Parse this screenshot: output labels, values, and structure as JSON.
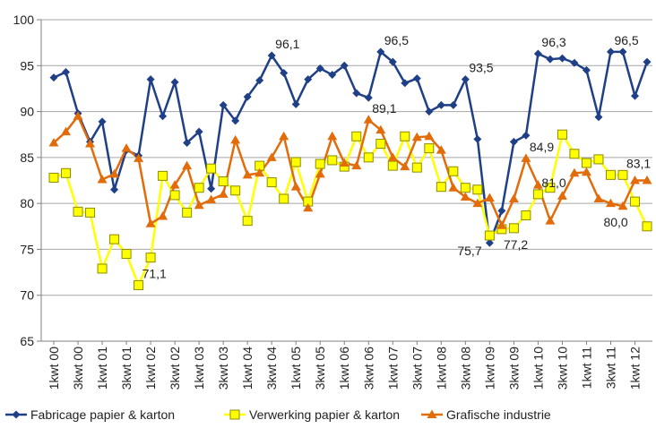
{
  "chart_data": {
    "type": "line",
    "categories": [
      "1kwt 00",
      null,
      "3kwt 00",
      null,
      "1kwt 01",
      null,
      "3kwt 01",
      null,
      "1kwt 02",
      null,
      "3kwt 02",
      null,
      "1kwt 03",
      null,
      "3kwt 03",
      null,
      "1kwt 04",
      null,
      "3kwt 04",
      null,
      "1kwt 05",
      null,
      "3kwt 05",
      null,
      "1kwt 06",
      null,
      "3kwt 06",
      null,
      "1kwt 07",
      null,
      "3kwt 07",
      null,
      "1kwt 08",
      null,
      "3kwt 08",
      null,
      "1kwt 09",
      null,
      "3kwt 09",
      null,
      "1kwt 10",
      null,
      "3kwt 10",
      null,
      "1kwt 11",
      null,
      "3kwt 11",
      null,
      "1kwt 12",
      null
    ],
    "ylim": [
      65,
      100
    ],
    "yticks": [
      65,
      70,
      75,
      80,
      85,
      90,
      95,
      100
    ],
    "grid": true,
    "legend": "bottom",
    "series": [
      {
        "name": "Fabricage papier & karton",
        "color": "#1f3f87",
        "marker": "diamond",
        "values": [
          93.7,
          94.3,
          89.8,
          86.7,
          88.9,
          81.5,
          85.8,
          85.2,
          93.5,
          89.5,
          93.2,
          86.6,
          87.8,
          81.6,
          90.7,
          89.0,
          91.6,
          93.4,
          96.1,
          94.2,
          90.8,
          93.5,
          94.7,
          94.0,
          95.0,
          92.0,
          91.5,
          96.5,
          95.4,
          93.1,
          93.6,
          90.0,
          90.7,
          90.7,
          93.5,
          87.0,
          75.7,
          79.2,
          86.7,
          87.4,
          96.3,
          95.7,
          95.8,
          95.3,
          94.5,
          89.4,
          96.5,
          96.5,
          91.7,
          95.4
        ],
        "value_labels": [
          null,
          null,
          null,
          null,
          null,
          null,
          null,
          null,
          null,
          null,
          null,
          null,
          null,
          null,
          null,
          null,
          null,
          null,
          "96,1",
          null,
          null,
          null,
          null,
          null,
          null,
          null,
          null,
          "96,5",
          null,
          null,
          null,
          null,
          null,
          null,
          "93,5",
          null,
          "75,7",
          null,
          null,
          null,
          "96,3",
          null,
          null,
          null,
          null,
          null,
          "96,5",
          null,
          null,
          null
        ]
      },
      {
        "name": "Verwerking papier & karton",
        "color": "#ffff00",
        "marker": "square",
        "values": [
          82.8,
          83.3,
          79.1,
          79.0,
          72.9,
          76.1,
          74.5,
          71.1,
          74.1,
          83.0,
          80.9,
          79.0,
          81.7,
          83.8,
          82.4,
          81.4,
          78.1,
          84.1,
          82.3,
          80.5,
          84.5,
          80.2,
          84.3,
          84.7,
          84.0,
          87.3,
          85.0,
          86.5,
          84.1,
          87.3,
          83.9,
          86.0,
          81.8,
          83.5,
          81.7,
          81.5,
          76.5,
          77.2,
          77.3,
          78.7,
          81.0,
          81.7,
          87.5,
          85.4,
          84.4,
          84.8,
          83.1,
          83.1,
          80.2,
          77.5
        ],
        "value_labels": [
          null,
          null,
          null,
          null,
          null,
          null,
          null,
          "71,1",
          null,
          null,
          null,
          null,
          null,
          null,
          null,
          null,
          null,
          null,
          null,
          null,
          null,
          null,
          null,
          null,
          null,
          null,
          null,
          null,
          null,
          null,
          null,
          null,
          null,
          null,
          null,
          null,
          null,
          "77,2",
          null,
          null,
          "81,0",
          null,
          null,
          null,
          null,
          null,
          null,
          "83,1",
          null,
          null
        ]
      },
      {
        "name": "Grafische industrie",
        "color": "#e36c0a",
        "marker": "triangle",
        "values": [
          86.6,
          87.8,
          89.5,
          86.5,
          82.6,
          83.2,
          86.0,
          84.9,
          77.8,
          78.6,
          82.0,
          84.1,
          79.8,
          80.4,
          81.0,
          86.9,
          83.1,
          83.3,
          85.0,
          87.3,
          81.8,
          79.5,
          83.2,
          87.3,
          84.4,
          84.1,
          89.1,
          88.0,
          85.0,
          84.0,
          87.2,
          87.3,
          85.8,
          81.7,
          80.7,
          80.0,
          80.6,
          77.6,
          80.5,
          84.9,
          82.0,
          78.1,
          80.8,
          83.3,
          83.4,
          80.5,
          80.0,
          79.7,
          82.5,
          82.5
        ],
        "value_labels": [
          null,
          null,
          null,
          null,
          null,
          null,
          null,
          null,
          null,
          null,
          null,
          null,
          null,
          null,
          null,
          null,
          null,
          null,
          null,
          null,
          null,
          null,
          null,
          null,
          null,
          null,
          "89,1",
          null,
          null,
          null,
          null,
          null,
          null,
          null,
          null,
          null,
          null,
          null,
          null,
          "84,9",
          null,
          null,
          null,
          null,
          null,
          null,
          "80,0",
          null,
          null,
          null
        ]
      }
    ]
  }
}
